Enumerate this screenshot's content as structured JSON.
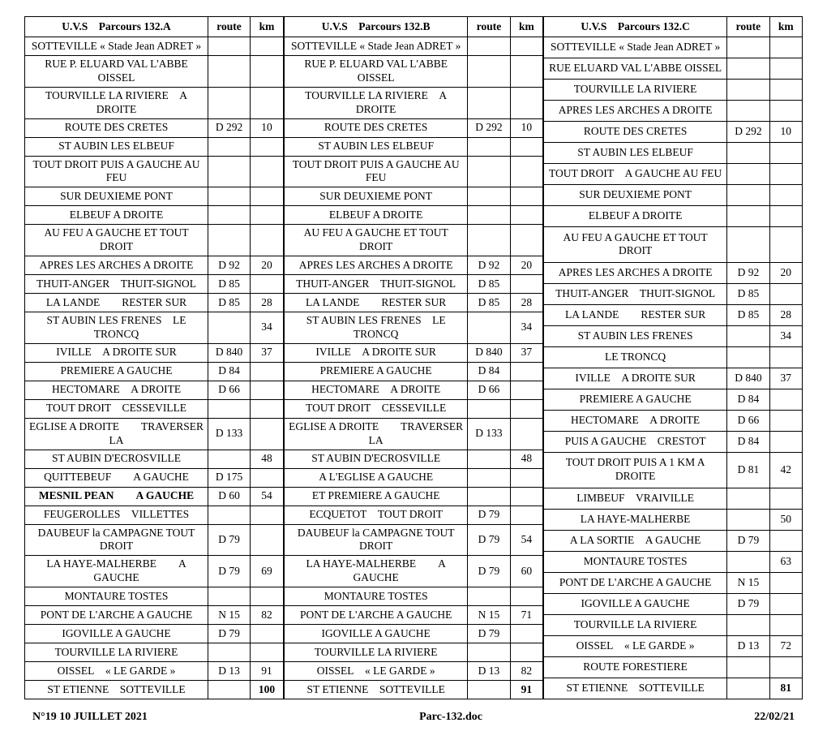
{
  "tables": [
    {
      "header": {
        "title": "U.V.S Parcours 132.A",
        "route": "route",
        "km": "km"
      },
      "rows": [
        {
          "desc": "SOTTEVILLE « Stade Jean ADRET »",
          "route": "",
          "km": ""
        },
        {
          "desc": "RUE P. ELUARD   VAL L'ABBE   OISSEL",
          "route": "",
          "km": ""
        },
        {
          "desc": "TOURVILLE LA RIVIERE A DROITE",
          "route": "",
          "km": ""
        },
        {
          "desc": "ROUTE DES CRETES",
          "route": "D 292",
          "km": "10"
        },
        {
          "desc": "ST AUBIN LES ELBEUF",
          "route": "",
          "km": ""
        },
        {
          "desc": "TOUT DROIT   PUIS A GAUCHE AU FEU",
          "route": "",
          "km": ""
        },
        {
          "desc": "SUR DEUXIEME PONT",
          "route": "",
          "km": ""
        },
        {
          "desc": "ELBEUF   A DROITE",
          "route": "",
          "km": ""
        },
        {
          "desc": "AU FEU A GAUCHE  ET  TOUT DROIT",
          "route": "",
          "km": ""
        },
        {
          "desc": "APRES LES ARCHES   A DROITE",
          "route": "D 92",
          "km": "20"
        },
        {
          "desc": "THUIT-ANGER THUIT-SIGNOL",
          "route": "D 85",
          "km": ""
        },
        {
          "desc": "LA LANDE  RESTER SUR",
          "route": "D 85",
          "km": "28"
        },
        {
          "desc": "ST AUBIN LES FRENES LE TRONCQ",
          "route": "",
          "km": "34"
        },
        {
          "desc": "IVILLE A DROITE  SUR",
          "route": "D 840",
          "km": "37"
        },
        {
          "desc": "PREMIERE  A GAUCHE",
          "route": "D 84",
          "km": ""
        },
        {
          "desc": "HECTOMARE A DROITE",
          "route": "D 66",
          "km": ""
        },
        {
          "desc": "TOUT  DROIT CESSEVILLE",
          "route": "",
          "km": ""
        },
        {
          "desc": "EGLISE  A DROITE  TRAVERSER LA",
          "route": "D 133",
          "km": ""
        },
        {
          "desc": "ST AUBIN D'ECROSVILLE",
          "route": "",
          "km": "48"
        },
        {
          "desc": "QUITTEBEUF  A GAUCHE",
          "route": "D 175",
          "km": ""
        },
        {
          "desc": "MESNIL PEAN  A GAUCHE",
          "route": "D 60",
          "km": "54",
          "descBold": true
        },
        {
          "desc": "FEUGEROLLES VILLETTES",
          "route": "",
          "km": ""
        },
        {
          "desc": "DAUBEUF la CAMPAGNE   TOUT DROIT",
          "route": "D 79",
          "km": ""
        },
        {
          "desc": "LA HAYE-MALHERBE  A GAUCHE",
          "route": "D 79",
          "km": "69"
        },
        {
          "desc": "MONTAURE   TOSTES",
          "route": "",
          "km": ""
        },
        {
          "desc": "PONT DE L'ARCHE   A GAUCHE",
          "route": "N 15",
          "km": "82"
        },
        {
          "desc": "IGOVILLE   A GAUCHE",
          "route": "D 79",
          "km": ""
        },
        {
          "desc": "TOURVILLE LA RIVIERE",
          "route": "",
          "km": ""
        },
        {
          "desc": "OISSEL « LE GARDE »",
          "route": "D 13",
          "km": "91"
        },
        {
          "desc": "ST ETIENNE SOTTEVILLE",
          "route": "",
          "km": "100",
          "kmBold": true
        }
      ]
    },
    {
      "header": {
        "title": "U.V.S Parcours 132.B",
        "route": "route",
        "km": "km"
      },
      "rows": [
        {
          "desc": "SOTTEVILLE « Stade Jean ADRET »",
          "route": "",
          "km": ""
        },
        {
          "desc": "RUE P. ELUARD   VAL L'ABBE   OISSEL",
          "route": "",
          "km": ""
        },
        {
          "desc": "TOURVILLE LA RIVIERE A DROITE",
          "route": "",
          "km": ""
        },
        {
          "desc": "ROUTE DES CRETES",
          "route": "D 292",
          "km": "10"
        },
        {
          "desc": "ST AUBIN LES ELBEUF",
          "route": "",
          "km": ""
        },
        {
          "desc": "TOUT DROIT   PUIS A GAUCHE AU FEU",
          "route": "",
          "km": ""
        },
        {
          "desc": "SUR DEUXIEME PONT",
          "route": "",
          "km": ""
        },
        {
          "desc": "ELBEUF   A DROITE",
          "route": "",
          "km": ""
        },
        {
          "desc": "AU FEU A GAUCHE  ET  TOUT DROIT",
          "route": "",
          "km": ""
        },
        {
          "desc": "APRES LES ARCHES   A DROITE",
          "route": "D 92",
          "km": "20"
        },
        {
          "desc": "THUIT-ANGER THUIT-SIGNOL",
          "route": "D 85",
          "km": ""
        },
        {
          "desc": "LA LANDE  RESTER SUR",
          "route": "D 85",
          "km": "28"
        },
        {
          "desc": "ST AUBIN LES FRENES LE TRONCQ",
          "route": "",
          "km": "34"
        },
        {
          "desc": "IVILLE A DROITE  SUR",
          "route": "D 840",
          "km": "37"
        },
        {
          "desc": "PREMIERE  A GAUCHE",
          "route": "D 84",
          "km": ""
        },
        {
          "desc": "HECTOMARE A DROITE",
          "route": "D 66",
          "km": ""
        },
        {
          "desc": "TOUT  DROIT CESSEVILLE",
          "route": "",
          "km": ""
        },
        {
          "desc": "EGLISE  A DROITE  TRAVERSER LA",
          "route": "D 133",
          "km": ""
        },
        {
          "desc": "ST AUBIN D'ECROSVILLE",
          "route": "",
          "km": "48"
        },
        {
          "desc": "A L'EGLISE  A GAUCHE",
          "route": "",
          "km": ""
        },
        {
          "desc": "ET  PREMIERE   A GAUCHE",
          "route": "",
          "km": ""
        },
        {
          "desc": "ECQUETOT TOUT DROIT",
          "route": "D 79",
          "km": ""
        },
        {
          "desc": "DAUBEUF la CAMPAGNE   TOUT DROIT",
          "route": "D 79",
          "km": "54"
        },
        {
          "desc": "LA HAYE-MALHERBE  A GAUCHE",
          "route": "D 79",
          "km": "60"
        },
        {
          "desc": "MONTAURE   TOSTES",
          "route": "",
          "km": ""
        },
        {
          "desc": "PONT DE L'ARCHE   A GAUCHE",
          "route": "N 15",
          "km": "71"
        },
        {
          "desc": "IGOVILLE   A GAUCHE",
          "route": "D 79",
          "km": ""
        },
        {
          "desc": "TOURVILLE LA RIVIERE",
          "route": "",
          "km": ""
        },
        {
          "desc": "OISSEL « LE GARDE »",
          "route": "D 13",
          "km": "82"
        },
        {
          "desc": "ST ETIENNE SOTTEVILLE",
          "route": "",
          "km": "91",
          "kmBold": true
        }
      ]
    },
    {
      "header": {
        "title": "U.V.S Parcours 132.C",
        "route": "route",
        "km": "km"
      },
      "rows": [
        {
          "desc": "SOTTEVILLE « Stade Jean ADRET »",
          "route": "",
          "km": ""
        },
        {
          "desc": "RUE ELUARD   VAL L'ABBE   OISSEL",
          "route": "",
          "km": ""
        },
        {
          "desc": "TOURVILLE LA RIVIERE",
          "route": "",
          "km": ""
        },
        {
          "desc": "APRES LES ARCHES   A DROITE",
          "route": "",
          "km": ""
        },
        {
          "desc": "ROUTE DES CRETES",
          "route": "D 292",
          "km": "10"
        },
        {
          "desc": "ST AUBIN LES ELBEUF",
          "route": "",
          "km": ""
        },
        {
          "desc": "TOUT DROIT A GAUCHE AU FEU",
          "route": "",
          "km": ""
        },
        {
          "desc": "SUR DEUXIEME PONT",
          "route": "",
          "km": ""
        },
        {
          "desc": "ELBEUF   A DROITE",
          "route": "",
          "km": ""
        },
        {
          "desc": "AU FEU A GAUCHE  ET  TOUT DROIT",
          "route": "",
          "km": ""
        },
        {
          "desc": "APRES LES ARCHES   A DROITE",
          "route": "D 92",
          "km": "20"
        },
        {
          "desc": "THUIT-ANGER THUIT-SIGNOL",
          "route": "D 85",
          "km": ""
        },
        {
          "desc": "LA LANDE  RESTER SUR",
          "route": "D 85",
          "km": "28"
        },
        {
          "desc": "ST AUBIN LES FRENES",
          "route": "",
          "km": "34"
        },
        {
          "desc": "LE TRONCQ",
          "route": "",
          "km": ""
        },
        {
          "desc": "IVILLE A DROITE   SUR",
          "route": "D 840",
          "km": "37"
        },
        {
          "desc": "PREMIERE  A GAUCHE",
          "route": "D 84",
          "km": ""
        },
        {
          "desc": "HECTOMARE A DROITE",
          "route": "D 66",
          "km": ""
        },
        {
          "desc": "PUIS A GAUCHE CRESTOT",
          "route": "D 84",
          "km": ""
        },
        {
          "desc": "TOUT DROIT  PUIS  A 1 KM  A DROITE",
          "route": "D 81",
          "km": "42"
        },
        {
          "desc": "LIMBEUF VRAIVILLE",
          "route": "",
          "km": ""
        },
        {
          "desc": "LA HAYE-MALHERBE",
          "route": "",
          "km": "50"
        },
        {
          "desc": "A LA SORTIE A GAUCHE",
          "route": "D 79",
          "km": ""
        },
        {
          "desc": "MONTAURE   TOSTES",
          "route": "",
          "km": "63"
        },
        {
          "desc": "PONT DE L'ARCHE   A GAUCHE",
          "route": "N 15",
          "km": ""
        },
        {
          "desc": "IGOVILLE   A GAUCHE",
          "route": "D 79",
          "km": ""
        },
        {
          "desc": "TOURVILLE LA RIVIERE",
          "route": "",
          "km": ""
        },
        {
          "desc": "OISSEL « LE GARDE »",
          "route": "D 13",
          "km": "72"
        },
        {
          "desc": "ROUTE FORESTIERE",
          "route": "",
          "km": ""
        },
        {
          "desc": "ST ETIENNE SOTTEVILLE",
          "route": "",
          "km": "81",
          "kmBold": true
        }
      ]
    }
  ],
  "footer": {
    "left": "N°19  10 JUILLET 2021",
    "center": "Parc-132.doc",
    "right": "22/02/21"
  }
}
